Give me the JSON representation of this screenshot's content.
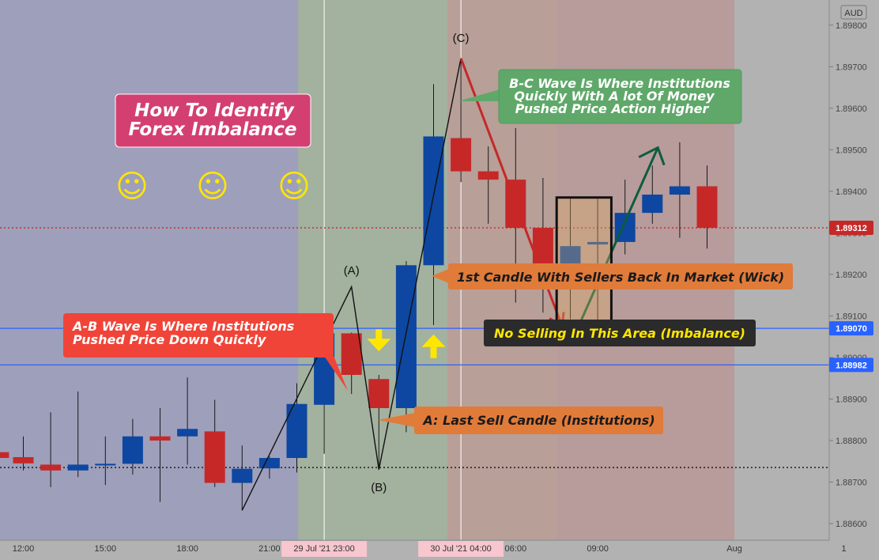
{
  "chart_data": {
    "type": "candlestick",
    "currency_badge": "AUD",
    "y_ticks": [
      1.898,
      1.897,
      1.896,
      1.895,
      1.894,
      1.893,
      1.892,
      1.891,
      1.89,
      1.889,
      1.888,
      1.887,
      1.886
    ],
    "y_tick_labels": [
      "1.89800",
      "1.89700",
      "1.89600",
      "1.89500",
      "1.89400",
      "1.89300",
      "1.89200",
      "1.89100",
      "1.89000",
      "1.88900",
      "1.88800",
      "1.88700",
      "1.88600"
    ],
    "ylim": [
      1.8856,
      1.8983
    ],
    "x_tick_labels": [
      {
        "label": "12:00",
        "t": 0
      },
      {
        "label": "15:00",
        "t": 3
      },
      {
        "label": "18:00",
        "t": 6
      },
      {
        "label": "21:00",
        "t": 9
      },
      {
        "label": "06:00",
        "t": 18
      },
      {
        "label": "09:00",
        "t": 21
      },
      {
        "label": "Aug",
        "t": 26
      },
      {
        "label": "1",
        "t": 30
      }
    ],
    "x_highlight_labels": [
      {
        "label": "29 Jul '21  23:00",
        "t": 11
      },
      {
        "label": "30 Jul '21  04:00",
        "t": 16
      }
    ],
    "candles": [
      {
        "t": -0.9,
        "o": 1.88772,
        "h": 1.88781,
        "l": 1.88758,
        "c": 1.88758
      },
      {
        "t": 0,
        "o": 1.8876,
        "h": 1.8881,
        "l": 1.88728,
        "c": 1.88745
      },
      {
        "t": 1,
        "o": 1.88742,
        "h": 1.88868,
        "l": 1.88688,
        "c": 1.88728
      },
      {
        "t": 2,
        "o": 1.88728,
        "h": 1.88918,
        "l": 1.88712,
        "c": 1.88742
      },
      {
        "t": 3,
        "o": 1.8874,
        "h": 1.8881,
        "l": 1.88693,
        "c": 1.88744
      },
      {
        "t": 4,
        "o": 1.88744,
        "h": 1.88852,
        "l": 1.88718,
        "c": 1.8881
      },
      {
        "t": 5,
        "o": 1.8881,
        "h": 1.88878,
        "l": 1.88652,
        "c": 1.888
      },
      {
        "t": 6,
        "o": 1.8881,
        "h": 1.88952,
        "l": 1.88742,
        "c": 1.88828
      },
      {
        "t": 7,
        "o": 1.88822,
        "h": 1.88898,
        "l": 1.88688,
        "c": 1.88698
      },
      {
        "t": 8,
        "o": 1.88698,
        "h": 1.88788,
        "l": 1.88632,
        "c": 1.88732
      },
      {
        "t": 9,
        "o": 1.88733,
        "h": 1.88762,
        "l": 1.88708,
        "c": 1.88758
      },
      {
        "t": 10,
        "o": 1.88758,
        "h": 1.88938,
        "l": 1.88723,
        "c": 1.88888
      },
      {
        "t": 11,
        "o": 1.88886,
        "h": 1.8907,
        "l": 1.88768,
        "c": 1.89058
      },
      {
        "t": 12,
        "o": 1.89058,
        "h": 1.8906,
        "l": 1.88912,
        "c": 1.88958
      },
      {
        "t": 13,
        "o": 1.88948,
        "h": 1.88958,
        "l": 1.88738,
        "c": 1.88878
      },
      {
        "t": 14,
        "o": 1.88878,
        "h": 1.89232,
        "l": 1.8882,
        "c": 1.89222
      },
      {
        "t": 15,
        "o": 1.89222,
        "h": 1.89658,
        "l": 1.89078,
        "c": 1.89532
      },
      {
        "t": 16,
        "o": 1.89528,
        "h": 1.8972,
        "l": 1.89422,
        "c": 1.89448
      },
      {
        "t": 17,
        "o": 1.89448,
        "h": 1.89508,
        "l": 1.89322,
        "c": 1.89428
      },
      {
        "t": 18,
        "o": 1.89428,
        "h": 1.89552,
        "l": 1.89132,
        "c": 1.89312
      },
      {
        "t": 19,
        "o": 1.89312,
        "h": 1.89432,
        "l": 1.89108,
        "c": 1.89188
      },
      {
        "t": 20,
        "o": 1.89188,
        "h": 1.89382,
        "l": 1.89092,
        "c": 1.89268
      },
      {
        "t": 21,
        "o": 1.89272,
        "h": 1.89382,
        "l": 1.89082,
        "c": 1.89278
      },
      {
        "t": 22,
        "o": 1.89278,
        "h": 1.89428,
        "l": 1.89248,
        "c": 1.89348
      },
      {
        "t": 23,
        "o": 1.89348,
        "h": 1.89462,
        "l": 1.89322,
        "c": 1.89392
      },
      {
        "t": 24,
        "o": 1.89392,
        "h": 1.89518,
        "l": 1.89288,
        "c": 1.89412
      },
      {
        "t": 25,
        "o": 1.89412,
        "h": 1.89462,
        "l": 1.89262,
        "c": 1.89312
      }
    ],
    "horizontal_lines": [
      {
        "value": 1.89312,
        "label": "1.89312",
        "color": "#c62828",
        "style": "dotted"
      },
      {
        "value": 1.8907,
        "label": "1.89070",
        "color": "#2962ff",
        "style": "solid"
      },
      {
        "value": 1.88982,
        "label": "1.88982",
        "color": "#2962ff",
        "style": "solid"
      },
      {
        "value": 1.88735,
        "label": "",
        "color": "#111111",
        "style": "dotted"
      }
    ],
    "session_bands": [
      {
        "from": -3.6,
        "to": -1.55,
        "color": "#b79a9a"
      },
      {
        "from": -1.55,
        "to": 10.05,
        "color": "#9e9fbb"
      },
      {
        "from": 10.05,
        "to": 15.5,
        "color": "#a3b19f"
      },
      {
        "from": 15.5,
        "to": 19.5,
        "color": "#b89f98"
      },
      {
        "from": 19.5,
        "to": 26.0,
        "color": "#b89b9b"
      }
    ],
    "wave_points": [
      {
        "t": 8.0,
        "p": 1.88632
      },
      {
        "t": 12.0,
        "p": 1.8917
      },
      {
        "t": 13.0,
        "p": 1.8873
      },
      {
        "t": 16.0,
        "p": 1.8972
      }
    ],
    "point_labels": [
      {
        "text": "(A)",
        "t": 12.0,
        "p": 1.892
      },
      {
        "text": "(B)",
        "t": 13.0,
        "p": 1.88678
      },
      {
        "text": "(C)",
        "t": 16.0,
        "p": 1.8976
      }
    ],
    "up_arrows": [
      {
        "t": 15,
        "p": 1.89025
      }
    ],
    "down_arrows": [
      {
        "t": 13,
        "p": 1.89045
      }
    ],
    "red_arrow": [
      {
        "t": 16.0,
        "p": 1.8972
      },
      {
        "t": 19.7,
        "p": 1.89075
      }
    ],
    "green_arrow": [
      {
        "t": 20.3,
        "p": 1.89075
      },
      {
        "t": 23.2,
        "p": 1.89505
      }
    ],
    "imbalance_box": {
      "t0": 19.5,
      "t1": 21.5,
      "p0": 1.89075,
      "p1": 1.89385
    },
    "smileys": [
      "☺",
      "☺",
      "☺"
    ]
  },
  "annotations": {
    "title_line1": "How To Identify",
    "title_line2": "Forex Imbalance",
    "ab_line1": "A-B Wave Is Where Institutions",
    "ab_line2": "Pushed Price Down Quickly",
    "bc_line1": "B-C Wave Is Where Institutions",
    "bc_line2": "Quickly With A lot Of Money",
    "bc_line3": "Pushed Price Action Higher",
    "first_candle": "1st Candle With Sellers Back In Market (Wick)",
    "no_selling": "No Selling In This Area (Imbalance)",
    "last_sell": "A: Last Sell Candle (Institutions)"
  },
  "colors": {
    "bull": "#0d47a1",
    "bear": "#c62828",
    "title_bg": "#d43f72",
    "ab_bg": "#f04438",
    "bc_bg": "#5fa86a",
    "orange_bg": "#e07b3a",
    "dark_bg": "#2b2b2b",
    "yellow": "#ffe600",
    "wave_green": "#0d5c3f"
  }
}
